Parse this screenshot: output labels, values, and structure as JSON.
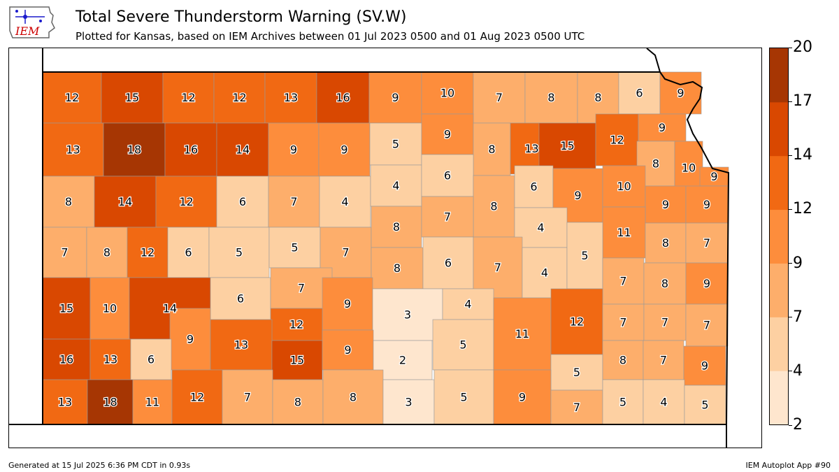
{
  "header": {
    "logo_text": "IEM",
    "title": "Total Severe Thunderstorm Warning (SV.W)",
    "subtitle": "Plotted for Kansas, based on IEM Archives  between 01 Jul 2023 0500 and 01 Aug 2023 0500 UTC"
  },
  "footer": {
    "generated": "Generated at 15 Jul 2025 6:36 PM CDT in 0.93s",
    "app": "IEM Autoplot App #90"
  },
  "colorbar": {
    "levels": [
      2,
      4,
      7,
      9,
      12,
      14,
      17,
      20
    ],
    "labels": [
      "2",
      "4",
      "7",
      "9",
      "12",
      "14",
      "17",
      "20"
    ],
    "colors": [
      "#fee6ce",
      "#fdd0a2",
      "#fdae6b",
      "#fd8d3c",
      "#f16913",
      "#d94801",
      "#a63603"
    ]
  },
  "map": {
    "counties": [
      {
        "v": 12,
        "c": [
          60,
          102,
          144,
          175
        ]
      },
      {
        "v": 15,
        "c": [
          144,
          102,
          232,
          175
        ]
      },
      {
        "v": 12,
        "c": [
          232,
          102,
          305,
          175
        ]
      },
      {
        "v": 12,
        "c": [
          305,
          102,
          378,
          175
        ]
      },
      {
        "v": 13,
        "c": [
          378,
          102,
          452,
          175
        ]
      },
      {
        "v": 16,
        "c": [
          452,
          102,
          527,
          175
        ]
      },
      {
        "v": 9,
        "c": [
          527,
          102,
          602,
          175
        ]
      },
      {
        "v": 10,
        "c": [
          602,
          102,
          676,
          162
        ]
      },
      {
        "v": 7,
        "c": [
          676,
          102,
          750,
          175
        ]
      },
      {
        "v": 8,
        "c": [
          750,
          102,
          825,
          175
        ]
      },
      {
        "v": 8,
        "c": [
          825,
          102,
          884,
          175
        ]
      },
      {
        "v": 6,
        "c": [
          884,
          102,
          943,
          162
        ]
      },
      {
        "v": 9,
        "c": [
          943,
          102,
          1002,
          162
        ]
      },
      {
        "v": 13,
        "c": [
          60,
          175,
          147,
          251
        ]
      },
      {
        "v": 18,
        "c": [
          147,
          175,
          235,
          251
        ]
      },
      {
        "v": 16,
        "c": [
          235,
          175,
          309,
          251
        ]
      },
      {
        "v": 14,
        "c": [
          309,
          175,
          383,
          251
        ]
      },
      {
        "v": 9,
        "c": [
          383,
          175,
          455,
          251
        ]
      },
      {
        "v": 9,
        "c": [
          455,
          175,
          528,
          251
        ]
      },
      {
        "v": 5,
        "c": [
          528,
          175,
          602,
          235
        ]
      },
      {
        "v": 9,
        "c": [
          602,
          162,
          676,
          220
        ]
      },
      {
        "v": 8,
        "c": [
          676,
          175,
          729,
          250
        ]
      },
      {
        "v": 13,
        "c": [
          729,
          175,
          790,
          248
        ]
      },
      {
        "v": 15,
        "c": [
          770,
          175,
          851,
          240
        ]
      },
      {
        "v": 12,
        "c": [
          851,
          162,
          912,
          236
        ]
      },
      {
        "v": 9,
        "c": [
          912,
          162,
          980,
          201
        ]
      },
      {
        "v": 8,
        "c": [
          910,
          201,
          964,
          265
        ]
      },
      {
        "v": 10,
        "c": [
          964,
          201,
          1004,
          277
        ]
      },
      {
        "v": 9,
        "c": [
          1000,
          238,
          1041,
          265
        ]
      },
      {
        "v": 8,
        "c": [
          60,
          251,
          134,
          324
        ]
      },
      {
        "v": 14,
        "c": [
          134,
          251,
          222,
          324
        ]
      },
      {
        "v": 12,
        "c": [
          222,
          251,
          309,
          324
        ]
      },
      {
        "v": 6,
        "c": [
          309,
          251,
          383,
          324
        ]
      },
      {
        "v": 7,
        "c": [
          383,
          251,
          456,
          324
        ]
      },
      {
        "v": 4,
        "c": [
          456,
          251,
          529,
          324
        ]
      },
      {
        "v": 4,
        "c": [
          529,
          235,
          602,
          294
        ]
      },
      {
        "v": 6,
        "c": [
          602,
          220,
          676,
          280
        ]
      },
      {
        "v": 8,
        "c": [
          676,
          250,
          735,
          338
        ]
      },
      {
        "v": 6,
        "c": [
          735,
          236,
          790,
          296
        ]
      },
      {
        "v": 9,
        "c": [
          790,
          240,
          861,
          317
        ]
      },
      {
        "v": 10,
        "c": [
          861,
          236,
          922,
          295
        ]
      },
      {
        "v": 9,
        "c": [
          922,
          265,
          980,
          318
        ]
      },
      {
        "v": 9,
        "c": [
          980,
          265,
          1040,
          318
        ]
      },
      {
        "v": 7,
        "c": [
          60,
          324,
          123,
          396
        ]
      },
      {
        "v": 8,
        "c": [
          123,
          324,
          181,
          396
        ]
      },
      {
        "v": 12,
        "c": [
          181,
          324,
          239,
          396
        ]
      },
      {
        "v": 6,
        "c": [
          239,
          324,
          298,
          396
        ]
      },
      {
        "v": 5,
        "c": [
          298,
          324,
          384,
          396
        ]
      },
      {
        "v": 5,
        "c": [
          384,
          324,
          457,
          382
        ]
      },
      {
        "v": 7,
        "c": [
          457,
          324,
          530,
          396
        ]
      },
      {
        "v": 8,
        "c": [
          530,
          294,
          602,
          353
        ]
      },
      {
        "v": 7,
        "c": [
          602,
          280,
          676,
          338
        ]
      },
      {
        "v": 4,
        "c": [
          735,
          296,
          810,
          353
        ]
      },
      {
        "v": 11,
        "c": [
          861,
          295,
          922,
          368
        ]
      },
      {
        "v": 8,
        "c": [
          922,
          318,
          980,
          375
        ]
      },
      {
        "v": 7,
        "c": [
          980,
          318,
          1040,
          375
        ]
      },
      {
        "v": 8,
        "c": [
          530,
          353,
          604,
          412
        ]
      },
      {
        "v": 6,
        "c": [
          604,
          338,
          676,
          412
        ]
      },
      {
        "v": 7,
        "c": [
          676,
          338,
          746,
          425
        ]
      },
      {
        "v": 4,
        "c": [
          746,
          353,
          810,
          425
        ]
      },
      {
        "v": 5,
        "c": [
          810,
          317,
          861,
          412
        ]
      },
      {
        "v": 7,
        "c": [
          861,
          368,
          920,
          434
        ]
      },
      {
        "v": 8,
        "c": [
          920,
          375,
          980,
          434
        ]
      },
      {
        "v": 9,
        "c": [
          980,
          375,
          1040,
          434
        ]
      },
      {
        "v": 15,
        "c": [
          60,
          396,
          128,
          484
        ]
      },
      {
        "v": 10,
        "c": [
          128,
          396,
          184,
          484
        ]
      },
      {
        "v": 14,
        "c": [
          184,
          396,
          300,
          484
        ]
      },
      {
        "v": 6,
        "c": [
          300,
          396,
          386,
          456
        ]
      },
      {
        "v": 7,
        "c": [
          386,
          382,
          474,
          440
        ]
      },
      {
        "v": 9,
        "c": [
          460,
          396,
          532,
          471
        ]
      },
      {
        "v": 3,
        "c": [
          532,
          412,
          632,
          486
        ]
      },
      {
        "v": 4,
        "c": [
          632,
          412,
          705,
          456
        ]
      },
      {
        "v": 12,
        "c": [
          386,
          440,
          460,
          486
        ]
      },
      {
        "v": 9,
        "c": [
          242,
          440,
          300,
          528
        ]
      },
      {
        "v": 13,
        "c": [
          300,
          456,
          388,
          528
        ]
      },
      {
        "v": 5,
        "c": [
          618,
          456,
          705,
          528
        ]
      },
      {
        "v": 11,
        "c": [
          705,
          425,
          787,
          528
        ]
      },
      {
        "v": 12,
        "c": [
          787,
          412,
          861,
          506
        ]
      },
      {
        "v": 7,
        "c": [
          861,
          434,
          920,
          486
        ]
      },
      {
        "v": 7,
        "c": [
          920,
          434,
          980,
          486
        ]
      },
      {
        "v": 7,
        "c": [
          980,
          434,
          1040,
          494
        ]
      },
      {
        "v": 16,
        "c": [
          60,
          484,
          128,
          542
        ]
      },
      {
        "v": 13,
        "c": [
          128,
          484,
          186,
          542
        ]
      },
      {
        "v": 6,
        "c": [
          186,
          484,
          244,
          542
        ]
      },
      {
        "v": 15,
        "c": [
          388,
          486,
          460,
          542
        ]
      },
      {
        "v": 9,
        "c": [
          460,
          471,
          533,
          528
        ]
      },
      {
        "v": 2,
        "c": [
          533,
          486,
          617,
          542
        ]
      },
      {
        "v": 5,
        "c": [
          787,
          506,
          861,
          557
        ]
      },
      {
        "v": 8,
        "c": [
          861,
          486,
          919,
          542
        ]
      },
      {
        "v": 7,
        "c": [
          919,
          486,
          977,
          542
        ]
      },
      {
        "v": 9,
        "c": [
          977,
          494,
          1037,
          550
        ]
      },
      {
        "v": 13,
        "c": [
          60,
          542,
          124,
          606
        ]
      },
      {
        "v": 18,
        "c": [
          124,
          542,
          189,
          606
        ]
      },
      {
        "v": 11,
        "c": [
          189,
          542,
          245,
          606
        ]
      },
      {
        "v": 12,
        "c": [
          245,
          528,
          317,
          606
        ]
      },
      {
        "v": 7,
        "c": [
          317,
          528,
          389,
          606
        ]
      },
      {
        "v": 8,
        "c": [
          389,
          542,
          461,
          606
        ]
      },
      {
        "v": 8,
        "c": [
          461,
          528,
          547,
          606
        ]
      },
      {
        "v": 3,
        "c": [
          547,
          542,
          620,
          606
        ]
      },
      {
        "v": 5,
        "c": [
          620,
          528,
          705,
          606
        ]
      },
      {
        "v": 9,
        "c": [
          705,
          528,
          787,
          606
        ]
      },
      {
        "v": 7,
        "c": [
          787,
          557,
          861,
          606
        ]
      },
      {
        "v": 5,
        "c": [
          861,
          542,
          919,
          606
        ]
      },
      {
        "v": 4,
        "c": [
          919,
          542,
          978,
          606
        ]
      },
      {
        "v": 5,
        "c": [
          978,
          550,
          1037,
          606
        ]
      }
    ]
  }
}
